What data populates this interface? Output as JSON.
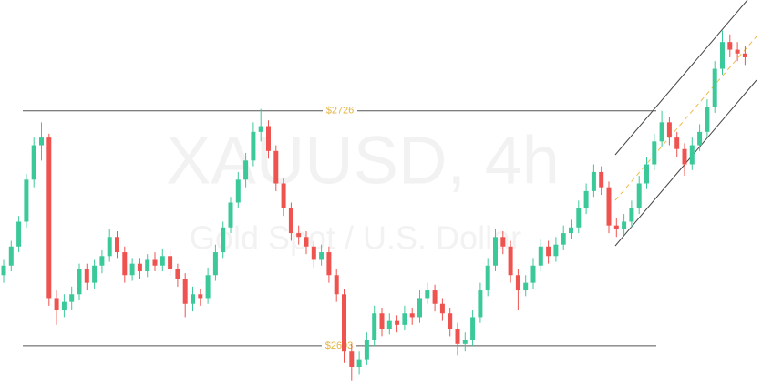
{
  "chart_data": {
    "type": "candlestick",
    "watermark": "XAUUSD, 4h",
    "watermark_subtitle": "Gold Spot / U.S. Dollar",
    "ylim": [
      2582,
      2784
    ],
    "up_color": "#3cc99a",
    "down_color": "#ef5350",
    "level_color": "#e3b341",
    "levels": [
      {
        "value": 2726,
        "label": "$2726"
      },
      {
        "value": 2603,
        "label": "$2603"
      }
    ],
    "candles": [
      [
        2640,
        2648,
        2636,
        2645
      ],
      [
        2645,
        2658,
        2642,
        2655
      ],
      [
        2655,
        2671,
        2652,
        2668
      ],
      [
        2668,
        2693,
        2665,
        2690
      ],
      [
        2690,
        2712,
        2686,
        2708
      ],
      [
        2708,
        2720,
        2700,
        2712
      ],
      [
        2712,
        2714,
        2624,
        2628
      ],
      [
        2628,
        2632,
        2614,
        2622
      ],
      [
        2622,
        2630,
        2618,
        2626
      ],
      [
        2626,
        2634,
        2622,
        2630
      ],
      [
        2630,
        2646,
        2627,
        2643
      ],
      [
        2643,
        2646,
        2632,
        2636
      ],
      [
        2636,
        2648,
        2633,
        2645
      ],
      [
        2645,
        2653,
        2641,
        2650
      ],
      [
        2650,
        2664,
        2647,
        2660
      ],
      [
        2660,
        2663,
        2649,
        2652
      ],
      [
        2652,
        2655,
        2636,
        2640
      ],
      [
        2640,
        2649,
        2637,
        2646
      ],
      [
        2646,
        2649,
        2638,
        2642
      ],
      [
        2642,
        2651,
        2639,
        2648
      ],
      [
        2648,
        2652,
        2642,
        2645
      ],
      [
        2645,
        2654,
        2642,
        2650
      ],
      [
        2650,
        2653,
        2640,
        2643
      ],
      [
        2643,
        2646,
        2634,
        2638
      ],
      [
        2638,
        2641,
        2618,
        2625
      ],
      [
        2625,
        2634,
        2621,
        2630
      ],
      [
        2630,
        2633,
        2624,
        2628
      ],
      [
        2628,
        2644,
        2625,
        2640
      ],
      [
        2640,
        2656,
        2637,
        2652
      ],
      [
        2652,
        2668,
        2649,
        2665
      ],
      [
        2665,
        2681,
        2662,
        2678
      ],
      [
        2678,
        2694,
        2675,
        2690
      ],
      [
        2690,
        2704,
        2686,
        2700
      ],
      [
        2700,
        2720,
        2697,
        2715
      ],
      [
        2715,
        2727,
        2710,
        2718
      ],
      [
        2718,
        2721,
        2701,
        2705
      ],
      [
        2705,
        2708,
        2684,
        2688
      ],
      [
        2688,
        2691,
        2671,
        2675
      ],
      [
        2675,
        2678,
        2658,
        2662
      ],
      [
        2662,
        2666,
        2656,
        2660
      ],
      [
        2660,
        2663,
        2651,
        2655
      ],
      [
        2655,
        2658,
        2644,
        2648
      ],
      [
        2648,
        2656,
        2645,
        2652
      ],
      [
        2652,
        2655,
        2636,
        2640
      ],
      [
        2640,
        2643,
        2626,
        2630
      ],
      [
        2630,
        2633,
        2594,
        2600
      ],
      [
        2600,
        2604,
        2585,
        2592
      ],
      [
        2592,
        2600,
        2588,
        2596
      ],
      [
        2596,
        2610,
        2593,
        2606
      ],
      [
        2606,
        2624,
        2603,
        2620
      ],
      [
        2620,
        2623,
        2608,
        2612
      ],
      [
        2612,
        2620,
        2609,
        2616
      ],
      [
        2616,
        2619,
        2610,
        2614
      ],
      [
        2614,
        2624,
        2611,
        2620
      ],
      [
        2620,
        2623,
        2614,
        2618
      ],
      [
        2618,
        2632,
        2615,
        2628
      ],
      [
        2628,
        2636,
        2625,
        2632
      ],
      [
        2632,
        2635,
        2621,
        2625
      ],
      [
        2625,
        2628,
        2616,
        2620
      ],
      [
        2620,
        2623,
        2608,
        2612
      ],
      [
        2612,
        2615,
        2598,
        2604
      ],
      [
        2604,
        2610,
        2600,
        2606
      ],
      [
        2606,
        2622,
        2603,
        2618
      ],
      [
        2618,
        2636,
        2615,
        2632
      ],
      [
        2632,
        2649,
        2629,
        2645
      ],
      [
        2645,
        2664,
        2642,
        2660
      ],
      [
        2660,
        2663,
        2651,
        2655
      ],
      [
        2655,
        2658,
        2636,
        2640
      ],
      [
        2640,
        2643,
        2622,
        2632
      ],
      [
        2632,
        2640,
        2629,
        2636
      ],
      [
        2636,
        2649,
        2633,
        2645
      ],
      [
        2645,
        2659,
        2642,
        2655
      ],
      [
        2655,
        2658,
        2646,
        2650
      ],
      [
        2650,
        2660,
        2647,
        2656
      ],
      [
        2656,
        2666,
        2653,
        2662
      ],
      [
        2662,
        2669,
        2659,
        2665
      ],
      [
        2665,
        2679,
        2662,
        2675
      ],
      [
        2675,
        2688,
        2672,
        2684
      ],
      [
        2684,
        2698,
        2681,
        2694
      ],
      [
        2694,
        2697,
        2682,
        2686
      ],
      [
        2686,
        2689,
        2662,
        2666
      ],
      [
        2666,
        2670,
        2660,
        2664
      ],
      [
        2664,
        2672,
        2661,
        2668
      ],
      [
        2668,
        2679,
        2665,
        2675
      ],
      [
        2675,
        2692,
        2672,
        2688
      ],
      [
        2688,
        2702,
        2685,
        2698
      ],
      [
        2698,
        2714,
        2695,
        2710
      ],
      [
        2710,
        2726,
        2707,
        2720
      ],
      [
        2720,
        2723,
        2708,
        2712
      ],
      [
        2712,
        2715,
        2702,
        2706
      ],
      [
        2706,
        2709,
        2692,
        2698
      ],
      [
        2698,
        2712,
        2695,
        2708
      ],
      [
        2708,
        2719,
        2705,
        2715
      ],
      [
        2715,
        2732,
        2712,
        2728
      ],
      [
        2728,
        2752,
        2725,
        2748
      ],
      [
        2748,
        2768,
        2745,
        2762
      ],
      [
        2762,
        2766,
        2754,
        2758
      ],
      [
        2758,
        2762,
        2752,
        2756
      ],
      [
        2756,
        2760,
        2750,
        2754
      ]
    ]
  }
}
